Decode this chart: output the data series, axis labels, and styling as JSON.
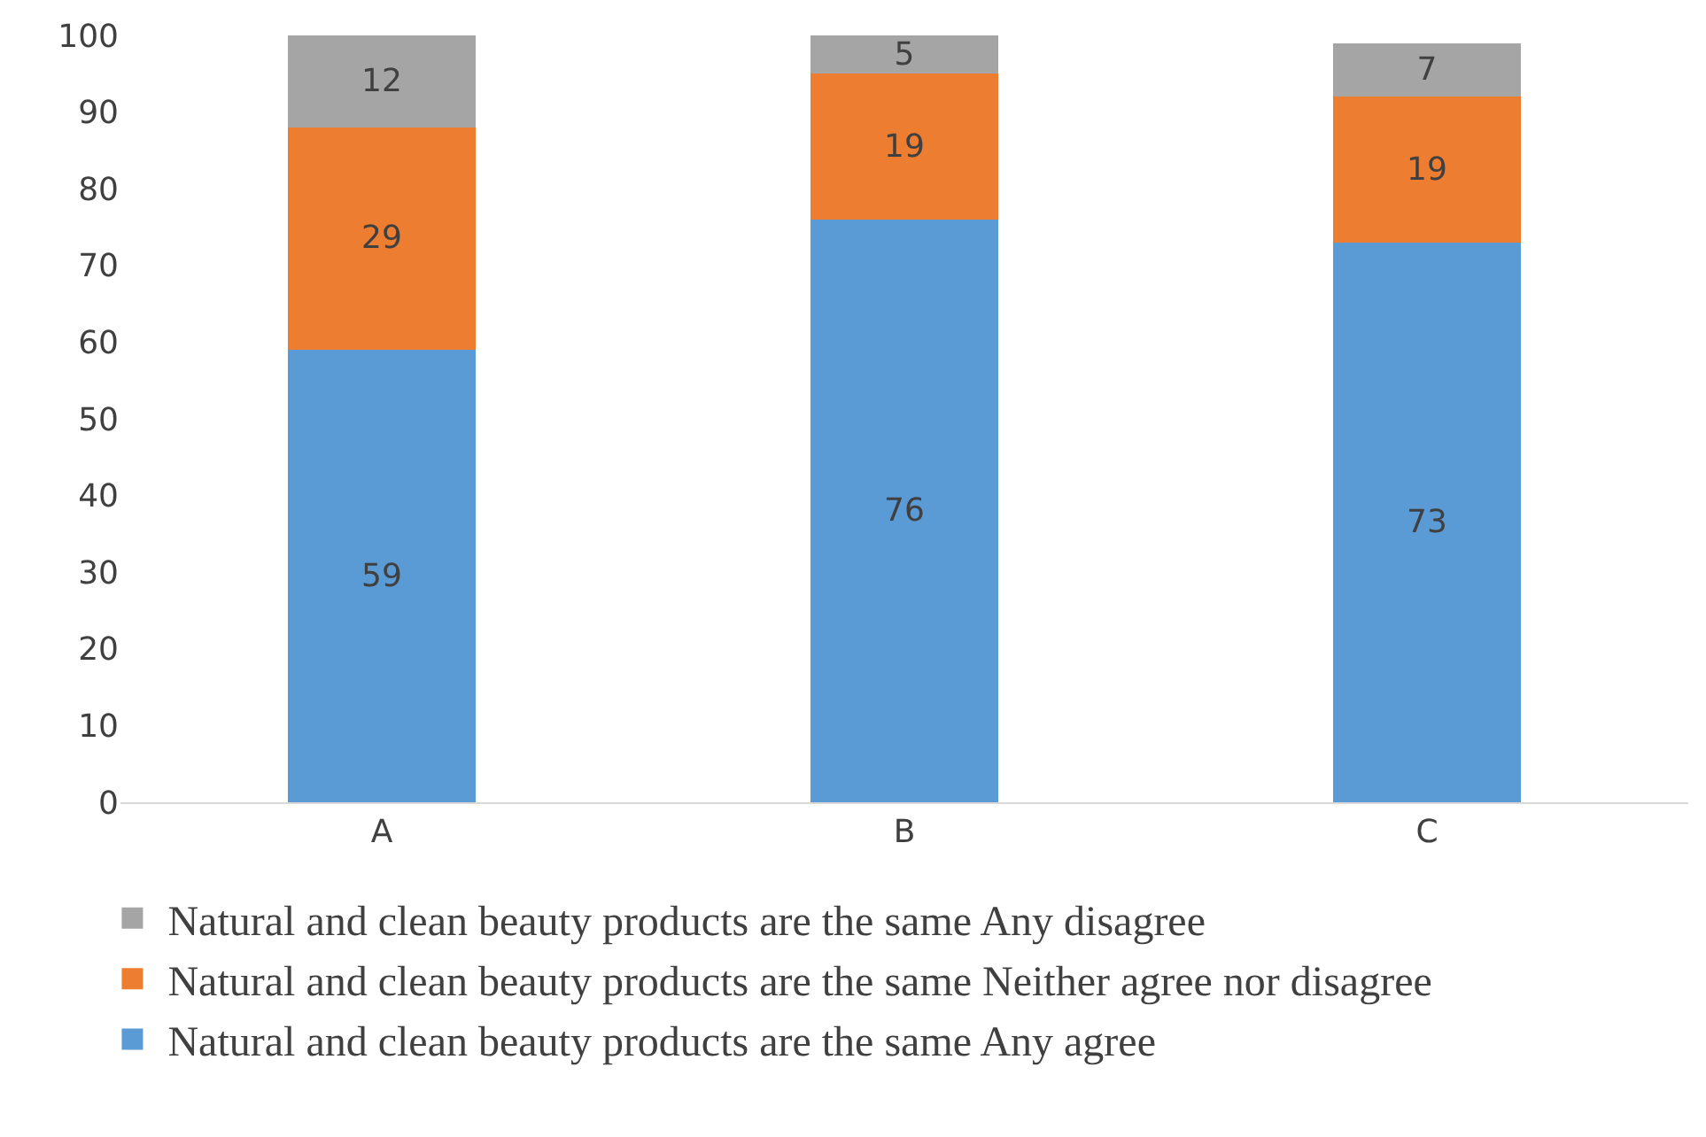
{
  "chart_data": {
    "type": "bar",
    "stacked": true,
    "categories": [
      "A",
      "B",
      "C"
    ],
    "series": [
      {
        "name": "Natural and clean beauty products are the same Any agree",
        "color": "#5b9bd5",
        "values": [
          59,
          76,
          73
        ]
      },
      {
        "name": "Natural and clean beauty products are the same Neither agree nor disagree",
        "color": "#ed7d31",
        "values": [
          29,
          19,
          19
        ]
      },
      {
        "name": "Natural and clean beauty products are the same Any disagree",
        "color": "#a5a5a5",
        "values": [
          12,
          5,
          7
        ]
      }
    ],
    "ylim": [
      0,
      100
    ],
    "yticks": [
      0,
      10,
      20,
      30,
      40,
      50,
      60,
      70,
      80,
      90,
      100
    ],
    "grid": false,
    "legend": "bottom",
    "data_labels": true
  }
}
